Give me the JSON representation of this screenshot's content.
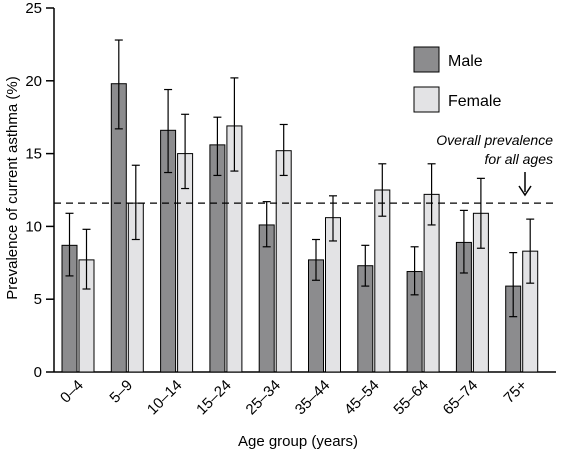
{
  "chart_data": {
    "type": "bar",
    "title": "",
    "xlabel": "Age group (years)",
    "ylabel": "Prevalence of current asthma (%)",
    "ylim": [
      0,
      25
    ],
    "yticks": [
      0,
      5,
      10,
      15,
      20,
      25
    ],
    "categories": [
      "0–4",
      "5–9",
      "10–14",
      "15–24",
      "25–34",
      "35–44",
      "45–54",
      "55–64",
      "65–74",
      "75+"
    ],
    "series": [
      {
        "name": "Male",
        "color": "#8c8c8e",
        "values": [
          8.7,
          19.8,
          16.6,
          15.6,
          10.1,
          7.7,
          7.3,
          6.9,
          8.9,
          5.9
        ],
        "error_low": [
          6.6,
          16.7,
          13.7,
          13.5,
          8.6,
          6.3,
          5.9,
          5.3,
          6.8,
          3.8
        ],
        "error_high": [
          10.9,
          22.8,
          19.4,
          17.5,
          11.7,
          9.1,
          8.7,
          8.6,
          11.1,
          8.2
        ]
      },
      {
        "name": "Female",
        "color": "#e3e3e5",
        "values": [
          7.7,
          11.6,
          15.0,
          16.9,
          15.2,
          10.6,
          12.5,
          12.2,
          10.9,
          8.3
        ],
        "error_low": [
          5.7,
          9.1,
          12.6,
          13.8,
          13.5,
          9.0,
          10.7,
          10.1,
          8.5,
          6.1
        ],
        "error_high": [
          9.8,
          14.2,
          17.7,
          20.2,
          17.0,
          12.1,
          14.3,
          14.3,
          13.3,
          10.5
        ]
      }
    ],
    "reference_line": {
      "value": 11.6,
      "style": "dashed",
      "annotation_lines": [
        "Overall prevalence",
        "for all ages"
      ]
    },
    "legend": {
      "position": "top-right",
      "entries": [
        "Male",
        "Female"
      ]
    },
    "grid": false
  }
}
